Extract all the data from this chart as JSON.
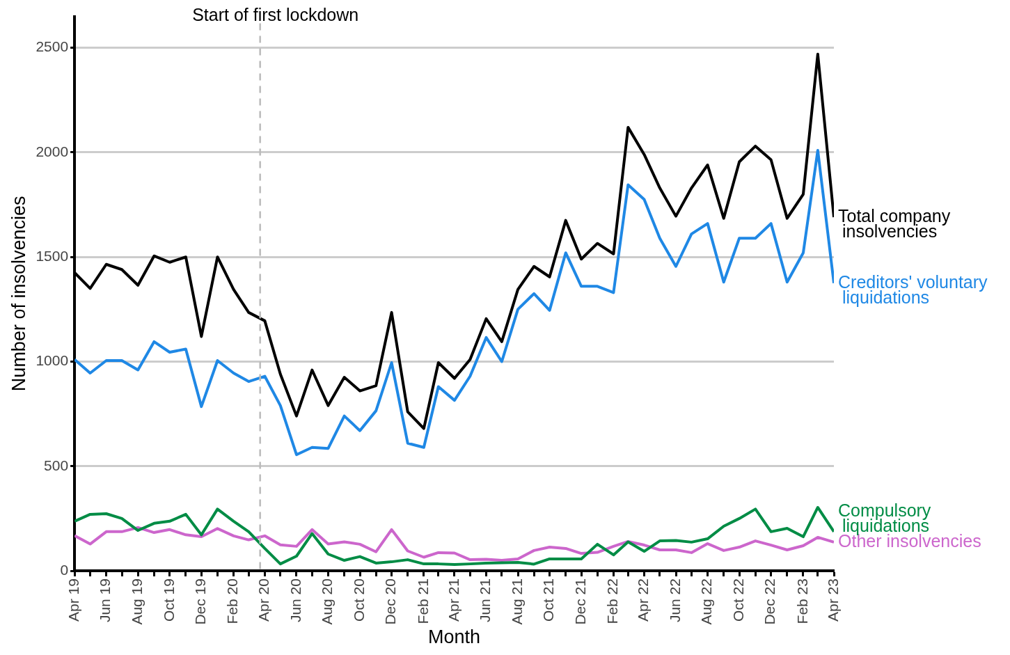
{
  "chart_data": {
    "type": "line",
    "xlabel": "Month",
    "ylabel": "Number of insolvencies",
    "x": [
      "2019-04",
      "2019-05",
      "2019-06",
      "2019-07",
      "2019-08",
      "2019-09",
      "2019-10",
      "2019-11",
      "2019-12",
      "2020-01",
      "2020-02",
      "2020-03",
      "2020-04",
      "2020-05",
      "2020-06",
      "2020-07",
      "2020-08",
      "2020-09",
      "2020-10",
      "2020-11",
      "2020-12",
      "2021-01",
      "2021-02",
      "2021-03",
      "2021-04",
      "2021-05",
      "2021-06",
      "2021-07",
      "2021-08",
      "2021-09",
      "2021-10",
      "2021-11",
      "2021-12",
      "2022-01",
      "2022-02",
      "2022-03",
      "2022-04",
      "2022-05",
      "2022-06",
      "2022-07",
      "2022-08",
      "2022-09",
      "2022-10",
      "2022-11",
      "2022-12",
      "2023-01",
      "2023-02",
      "2023-03",
      "2023-04"
    ],
    "series": [
      {
        "name": "Total company insolvencies",
        "color": "#000000",
        "values": [
          1425,
          1350,
          1465,
          1440,
          1365,
          1505,
          1475,
          1500,
          1120,
          1500,
          1345,
          1235,
          1195,
          940,
          740,
          960,
          790,
          925,
          860,
          885,
          1235,
          760,
          680,
          995,
          920,
          1010,
          1205,
          1095,
          1345,
          1455,
          1405,
          1675,
          1490,
          1565,
          1515,
          2120,
          1990,
          1830,
          1695,
          1830,
          1940,
          1685,
          1955,
          2030,
          1965,
          1685,
          1800,
          2470,
          1690
        ]
      },
      {
        "name": "Creditors' voluntary liquidations",
        "color": "#1f88e5",
        "values": [
          1010,
          945,
          1005,
          1005,
          960,
          1095,
          1045,
          1060,
          785,
          1005,
          945,
          905,
          930,
          790,
          555,
          590,
          585,
          740,
          670,
          765,
          995,
          610,
          590,
          880,
          815,
          930,
          1115,
          1000,
          1250,
          1325,
          1245,
          1520,
          1360,
          1360,
          1330,
          1845,
          1775,
          1590,
          1455,
          1610,
          1660,
          1380,
          1590,
          1590,
          1660,
          1380,
          1520,
          2010,
          1375
        ]
      },
      {
        "name": "Compulsory liquidations",
        "color": "#008c45",
        "values": [
          237,
          270,
          273,
          250,
          193,
          227,
          237,
          270,
          172,
          295,
          237,
          187,
          107,
          33,
          70,
          178,
          80,
          50,
          68,
          37,
          43,
          53,
          33,
          33,
          30,
          33,
          37,
          38,
          40,
          32,
          57,
          57,
          57,
          127,
          76,
          138,
          93,
          143,
          145,
          137,
          153,
          213,
          250,
          295,
          187,
          203,
          163,
          303,
          187
        ]
      },
      {
        "name": "Other insolvencies",
        "color": "#cc66cc",
        "values": [
          168,
          128,
          187,
          187,
          207,
          183,
          197,
          172,
          163,
          202,
          167,
          148,
          167,
          124,
          117,
          197,
          128,
          138,
          127,
          91,
          197,
          95,
          65,
          87,
          85,
          53,
          55,
          50,
          57,
          97,
          113,
          107,
          83,
          88,
          117,
          140,
          123,
          100,
          100,
          87,
          130,
          97,
          113,
          143,
          123,
          100,
          120,
          160,
          137
        ]
      }
    ],
    "xlim": [
      "2019-04",
      "2023-04"
    ],
    "xticks": [
      {
        "value": "2019-04",
        "label": "Apr 19"
      },
      {
        "value": "2019-05",
        "label": null
      },
      {
        "value": "2019-06",
        "label": "Jun 19"
      },
      {
        "value": "2019-07",
        "label": null
      },
      {
        "value": "2019-08",
        "label": "Aug 19"
      },
      {
        "value": "2019-09",
        "label": null
      },
      {
        "value": "2019-10",
        "label": "Oct 19"
      },
      {
        "value": "2019-11",
        "label": null
      },
      {
        "value": "2019-12",
        "label": "Dec 19"
      },
      {
        "value": "2020-01",
        "label": null
      },
      {
        "value": "2020-02",
        "label": "Feb 20"
      },
      {
        "value": "2020-03",
        "label": null
      },
      {
        "value": "2020-04",
        "label": "Apr 20"
      },
      {
        "value": "2020-05",
        "label": null
      },
      {
        "value": "2020-06",
        "label": "Jun 20"
      },
      {
        "value": "2020-07",
        "label": null
      },
      {
        "value": "2020-08",
        "label": "Aug 20"
      },
      {
        "value": "2020-09",
        "label": null
      },
      {
        "value": "2020-10",
        "label": "Oct 20"
      },
      {
        "value": "2020-11",
        "label": null
      },
      {
        "value": "2020-12",
        "label": "Dec 20"
      },
      {
        "value": "2021-01",
        "label": null
      },
      {
        "value": "2021-02",
        "label": "Feb 21"
      },
      {
        "value": "2021-03",
        "label": null
      },
      {
        "value": "2021-04",
        "label": "Apr 21"
      },
      {
        "value": "2021-05",
        "label": null
      },
      {
        "value": "2021-06",
        "label": "Jun 21"
      },
      {
        "value": "2021-07",
        "label": null
      },
      {
        "value": "2021-08",
        "label": "Aug 21"
      },
      {
        "value": "2021-09",
        "label": null
      },
      {
        "value": "2021-10",
        "label": "Oct 21"
      },
      {
        "value": "2021-11",
        "label": null
      },
      {
        "value": "2021-12",
        "label": "Dec 21"
      },
      {
        "value": "2022-01",
        "label": null
      },
      {
        "value": "2022-02",
        "label": "Feb 22"
      },
      {
        "value": "2022-03",
        "label": null
      },
      {
        "value": "2022-04",
        "label": "Apr 22"
      },
      {
        "value": "2022-05",
        "label": null
      },
      {
        "value": "2022-06",
        "label": "Jun 22"
      },
      {
        "value": "2022-07",
        "label": null
      },
      {
        "value": "2022-08",
        "label": "Aug 22"
      },
      {
        "value": "2022-09",
        "label": null
      },
      {
        "value": "2022-10",
        "label": "Oct 22"
      },
      {
        "value": "2022-11",
        "label": null
      },
      {
        "value": "2022-12",
        "label": "Dec 22"
      },
      {
        "value": "2023-01",
        "label": null
      },
      {
        "value": "2023-02",
        "label": "Feb 23"
      },
      {
        "value": "2023-03",
        "label": null
      },
      {
        "value": "2023-04",
        "label": "Apr 23"
      }
    ],
    "ylim": [
      0,
      2650
    ],
    "yticks": [
      0,
      500,
      1000,
      1500,
      2000,
      2500
    ],
    "ref_lines": [
      {
        "axis": "x",
        "value": "2020-03-23",
        "label": "Start of first lockdown",
        "color": "#bbbbbb",
        "line_style": "dashed"
      }
    ],
    "grid": "y",
    "legend": false,
    "marker": "none",
    "line_style": "solid"
  }
}
